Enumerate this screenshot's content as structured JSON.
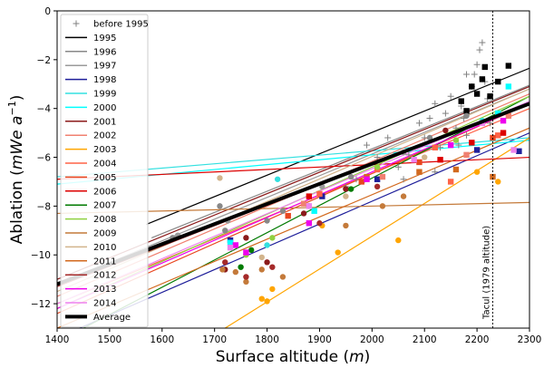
{
  "chart_data": {
    "type": "scatter",
    "xlabel": "Surface altitude (m)",
    "xlabel_parts": [
      "Surface altitude (",
      "m",
      ")"
    ],
    "ylabel_parts": [
      "Ablation (",
      "m",
      "W",
      "e",
      " a",
      "−1",
      ")"
    ],
    "xlim": [
      1400,
      2300
    ],
    "ylim": [
      -13,
      0
    ],
    "xticks": [
      1400,
      1500,
      1600,
      1700,
      1800,
      1900,
      2000,
      2100,
      2200,
      2300
    ],
    "yticks": [
      -12,
      -10,
      -8,
      -6,
      -4,
      -2,
      0
    ],
    "grid": false,
    "legend_position": "top-left",
    "annotation": {
      "text": "Tacul (1979 altitude)",
      "x": 2230
    },
    "series": [
      {
        "name": "before 1995",
        "color": "#808080",
        "marker": "plus",
        "line": null,
        "points": [
          [
            1990,
            -5.5
          ],
          [
            2010,
            -6.0
          ],
          [
            2030,
            -5.2
          ],
          [
            2050,
            -6.4
          ],
          [
            2070,
            -5.9
          ],
          [
            2090,
            -4.6
          ],
          [
            2100,
            -5.2
          ],
          [
            2110,
            -4.4
          ],
          [
            2120,
            -3.8
          ],
          [
            2130,
            -5.6
          ],
          [
            2140,
            -4.2
          ],
          [
            2150,
            -3.5
          ],
          [
            2160,
            -4.8
          ],
          [
            2170,
            -3.9
          ],
          [
            2180,
            -5.1
          ],
          [
            2190,
            -3.1
          ],
          [
            2195,
            -2.6
          ],
          [
            2200,
            -2.2
          ],
          [
            2205,
            -1.6
          ],
          [
            2210,
            -1.3
          ],
          [
            2215,
            -2.9
          ],
          [
            2220,
            -3.6
          ],
          [
            2225,
            -4.6
          ],
          [
            2180,
            -2.6
          ],
          [
            2165,
            -5.5
          ],
          [
            1950,
            -7.2
          ],
          [
            1970,
            -6.9
          ],
          [
            2060,
            -6.9
          ],
          [
            2120,
            -6.6
          ],
          [
            2175,
            -4.4
          ]
        ]
      },
      {
        "name": "1995",
        "color": "#000000",
        "marker": "square",
        "line": [
          [
            1570,
            -8.75
          ],
          [
            2300,
            -2.35
          ]
        ],
        "points": [
          [
            2170,
            -3.7
          ],
          [
            2190,
            -3.1
          ],
          [
            2200,
            -3.4
          ],
          [
            2210,
            -2.8
          ],
          [
            2215,
            -2.3
          ],
          [
            2225,
            -3.5
          ],
          [
            2240,
            -2.9
          ],
          [
            2260,
            -2.25
          ],
          [
            2180,
            -4.1
          ]
        ]
      },
      {
        "name": "1996",
        "color": "#888888",
        "marker": "circle",
        "line": [
          [
            1580,
            -9.3
          ],
          [
            2300,
            -3.05
          ]
        ],
        "points": [
          [
            1620,
            -9.3
          ],
          [
            1710,
            -8.0
          ],
          [
            1720,
            -9.0
          ],
          [
            1800,
            -8.6
          ],
          [
            1830,
            -8.2
          ],
          [
            1960,
            -6.8
          ],
          [
            2110,
            -5.2
          ],
          [
            2180,
            -4.3
          ]
        ]
      },
      {
        "name": "1997",
        "color": "#9a9a9a",
        "marker": "circle",
        "line": [
          [
            1400,
            -11.2
          ],
          [
            2300,
            -3.2
          ]
        ],
        "points": [
          [
            1630,
            -9.2
          ],
          [
            1725,
            -8.6
          ],
          [
            1905,
            -7.2
          ],
          [
            2060,
            -5.8
          ]
        ]
      },
      {
        "name": "1998",
        "color": "#1f1f9a",
        "marker": "square",
        "line": [
          [
            1400,
            -13.4
          ],
          [
            2300,
            -5.0
          ]
        ],
        "points": [
          [
            1730,
            -9.4
          ],
          [
            1905,
            -7.6
          ],
          [
            2010,
            -6.9
          ],
          [
            2200,
            -5.7
          ],
          [
            2280,
            -5.75
          ]
        ]
      },
      {
        "name": "1999",
        "color": "#33e0e0",
        "marker": "circle",
        "line": [
          [
            1400,
            -6.8
          ],
          [
            2300,
            -5.2
          ]
        ],
        "points": [
          [
            1800,
            -9.6
          ],
          [
            1820,
            -6.9
          ],
          [
            2210,
            -4.5
          ]
        ]
      },
      {
        "name": "2000",
        "color": "#00ffff",
        "marker": "square",
        "line": [
          [
            1400,
            -7.1
          ],
          [
            2300,
            -5.3
          ]
        ],
        "points": [
          [
            1730,
            -9.5
          ],
          [
            1890,
            -8.2
          ],
          [
            2240,
            -4.2
          ],
          [
            2260,
            -3.1
          ]
        ]
      },
      {
        "name": "2001",
        "color": "#8b1a1a",
        "marker": "circle",
        "line": [
          [
            1400,
            -11.0
          ],
          [
            2300,
            -3.1
          ]
        ],
        "points": [
          [
            1720,
            -10.6
          ],
          [
            1760,
            -9.3
          ],
          [
            1800,
            -10.3
          ],
          [
            1870,
            -8.3
          ],
          [
            1950,
            -7.3
          ],
          [
            2140,
            -4.9
          ]
        ]
      },
      {
        "name": "2002",
        "color": "#f08070",
        "marker": "square",
        "line": [
          [
            1400,
            -11.7
          ],
          [
            2300,
            -3.4
          ]
        ],
        "points": [
          [
            1870,
            -7.9
          ],
          [
            2020,
            -6.8
          ],
          [
            2180,
            -5.9
          ],
          [
            2260,
            -4.3
          ]
        ]
      },
      {
        "name": "2003",
        "color": "#ffa500",
        "marker": "circle",
        "line": [
          [
            1720,
            -13.0
          ],
          [
            2300,
            -5.2
          ]
        ],
        "points": [
          [
            1790,
            -11.8
          ],
          [
            1800,
            -11.9
          ],
          [
            1810,
            -11.4
          ],
          [
            1905,
            -8.8
          ],
          [
            1935,
            -9.9
          ],
          [
            2050,
            -9.4
          ],
          [
            2240,
            -7.0
          ],
          [
            2200,
            -6.6
          ]
        ]
      },
      {
        "name": "2004",
        "color": "#ff6347",
        "marker": "square",
        "line": [
          [
            1400,
            -12.0
          ],
          [
            2300,
            -4.0
          ]
        ],
        "points": [
          [
            1900,
            -7.5
          ],
          [
            2010,
            -6.5
          ],
          [
            2120,
            -5.6
          ],
          [
            2150,
            -7.0
          ],
          [
            2240,
            -5.1
          ]
        ]
      },
      {
        "name": "2005",
        "color": "#e8461f",
        "marker": "square",
        "line": [
          [
            1400,
            -12.4
          ],
          [
            2300,
            -3.8
          ]
        ],
        "points": [
          [
            1840,
            -8.4
          ],
          [
            1980,
            -7.0
          ],
          [
            2090,
            -6.2
          ],
          [
            2230,
            -5.2
          ]
        ]
      },
      {
        "name": "2006",
        "color": "#dd0000",
        "marker": "square",
        "line": [
          [
            1400,
            -6.9
          ],
          [
            2300,
            -6.0
          ]
        ],
        "points": [
          [
            1880,
            -7.6
          ],
          [
            2130,
            -6.1
          ],
          [
            2190,
            -5.4
          ],
          [
            2250,
            -5.0
          ]
        ]
      },
      {
        "name": "2007",
        "color": "#007a00",
        "marker": "circle",
        "line": [
          [
            1450,
            -13.0
          ],
          [
            2300,
            -3.5
          ]
        ],
        "points": [
          [
            1750,
            -10.5
          ],
          [
            1770,
            -9.8
          ],
          [
            1880,
            -8.0
          ],
          [
            1960,
            -7.3
          ]
        ]
      },
      {
        "name": "2008",
        "color": "#90d040",
        "marker": "circle",
        "line": [
          [
            1400,
            -12.2
          ],
          [
            2300,
            -3.5
          ]
        ],
        "points": [
          [
            1760,
            -10.0
          ],
          [
            1810,
            -9.3
          ],
          [
            2010,
            -6.4
          ],
          [
            2160,
            -5.3
          ]
        ]
      },
      {
        "name": "2009",
        "color": "#c47a3a",
        "marker": "circle",
        "line": [
          [
            1400,
            -8.3
          ],
          [
            2300,
            -7.85
          ]
        ],
        "points": [
          [
            1715,
            -10.6
          ],
          [
            1740,
            -10.7
          ],
          [
            1760,
            -11.1
          ],
          [
            1790,
            -10.6
          ],
          [
            1830,
            -10.9
          ],
          [
            1950,
            -8.8
          ],
          [
            2020,
            -8.0
          ],
          [
            2060,
            -7.6
          ]
        ]
      },
      {
        "name": "2010",
        "color": "#d2b48c",
        "marker": "circle",
        "line": [
          [
            1400,
            -11.5
          ],
          [
            2300,
            -3.2
          ]
        ],
        "points": [
          [
            1710,
            -6.85
          ],
          [
            1790,
            -10.1
          ],
          [
            1950,
            -7.6
          ],
          [
            2100,
            -6.0
          ]
        ]
      },
      {
        "name": "2011",
        "color": "#d2691e",
        "marker": "square",
        "line": [
          [
            1400,
            -13.0
          ],
          [
            2300,
            -4.8
          ]
        ],
        "points": [
          [
            1990,
            -6.8
          ],
          [
            2090,
            -6.6
          ],
          [
            2160,
            -6.5
          ],
          [
            2230,
            -6.8
          ]
        ]
      },
      {
        "name": "2012",
        "color": "#a52a2a",
        "marker": "circle",
        "line": [
          [
            1400,
            -11.3
          ],
          [
            2300,
            -3.8
          ]
        ],
        "points": [
          [
            1720,
            -10.3
          ],
          [
            1760,
            -10.9
          ],
          [
            1810,
            -10.5
          ],
          [
            1900,
            -8.7
          ],
          [
            2010,
            -7.2
          ]
        ]
      },
      {
        "name": "2013",
        "color": "#ee00ee",
        "marker": "square",
        "line": [
          [
            1400,
            -12.2
          ],
          [
            2300,
            -3.8
          ]
        ],
        "points": [
          [
            1740,
            -9.6
          ],
          [
            1760,
            -9.9
          ],
          [
            1880,
            -8.7
          ],
          [
            1990,
            -6.9
          ],
          [
            2150,
            -5.5
          ],
          [
            2250,
            -4.5
          ]
        ]
      },
      {
        "name": "2014",
        "color": "#ee82ee",
        "marker": "square",
        "line": [
          [
            1400,
            -12.0
          ],
          [
            2300,
            -3.7
          ]
        ],
        "points": [
          [
            1730,
            -9.7
          ],
          [
            1880,
            -8.0
          ],
          [
            2080,
            -6.1
          ],
          [
            2210,
            -4.6
          ],
          [
            2270,
            -5.7
          ]
        ]
      },
      {
        "name": "Average",
        "color": "#000000",
        "marker": null,
        "line": [
          [
            1400,
            -11.2
          ],
          [
            2300,
            -3.8
          ]
        ],
        "lineWidth": 4,
        "points": []
      }
    ]
  }
}
